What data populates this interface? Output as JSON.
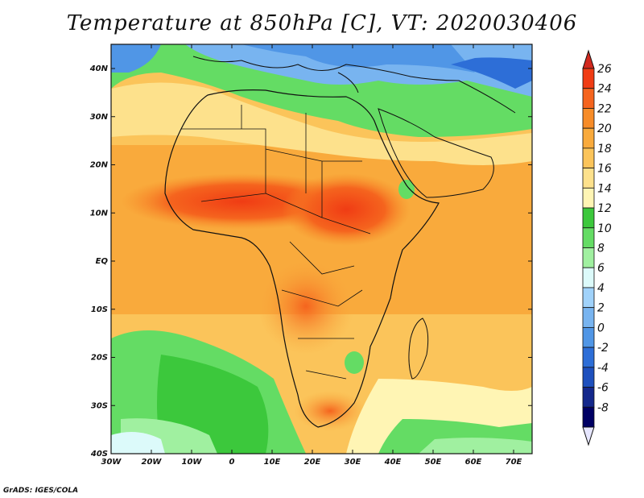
{
  "title": "Temperature at 850hPa [C], VT: 2020030406",
  "credit": "GrADS: IGES/COLA",
  "map": {
    "lat_labels": [
      "40N",
      "30N",
      "20N",
      "10N",
      "EQ",
      "10S",
      "20S",
      "30S",
      "40S"
    ],
    "lon_labels": [
      "30W",
      "20W",
      "10W",
      "0",
      "10E",
      "20E",
      "30E",
      "40E",
      "50E",
      "60E",
      "70E"
    ]
  },
  "colorbar": {
    "labels": [
      "26",
      "24",
      "22",
      "20",
      "18",
      "16",
      "14",
      "12",
      "10",
      "8",
      "6",
      "4",
      "2",
      "0",
      "-2",
      "-4",
      "-6",
      "-8"
    ],
    "colors": [
      "#f03c14",
      "#f5641e",
      "#f78c28",
      "#f9aa3c",
      "#fbc45a",
      "#fde18c",
      "#fff5b4",
      "#3cc83c",
      "#64dc64",
      "#a0f0a0",
      "#dcfafa",
      "#a0d2fa",
      "#78b4f0",
      "#5096e6",
      "#2d6ed7",
      "#1e50be",
      "#14288c",
      "#000064"
    ],
    "top_color": "#d2281e",
    "bottom_color": "#e6e6ff"
  }
}
